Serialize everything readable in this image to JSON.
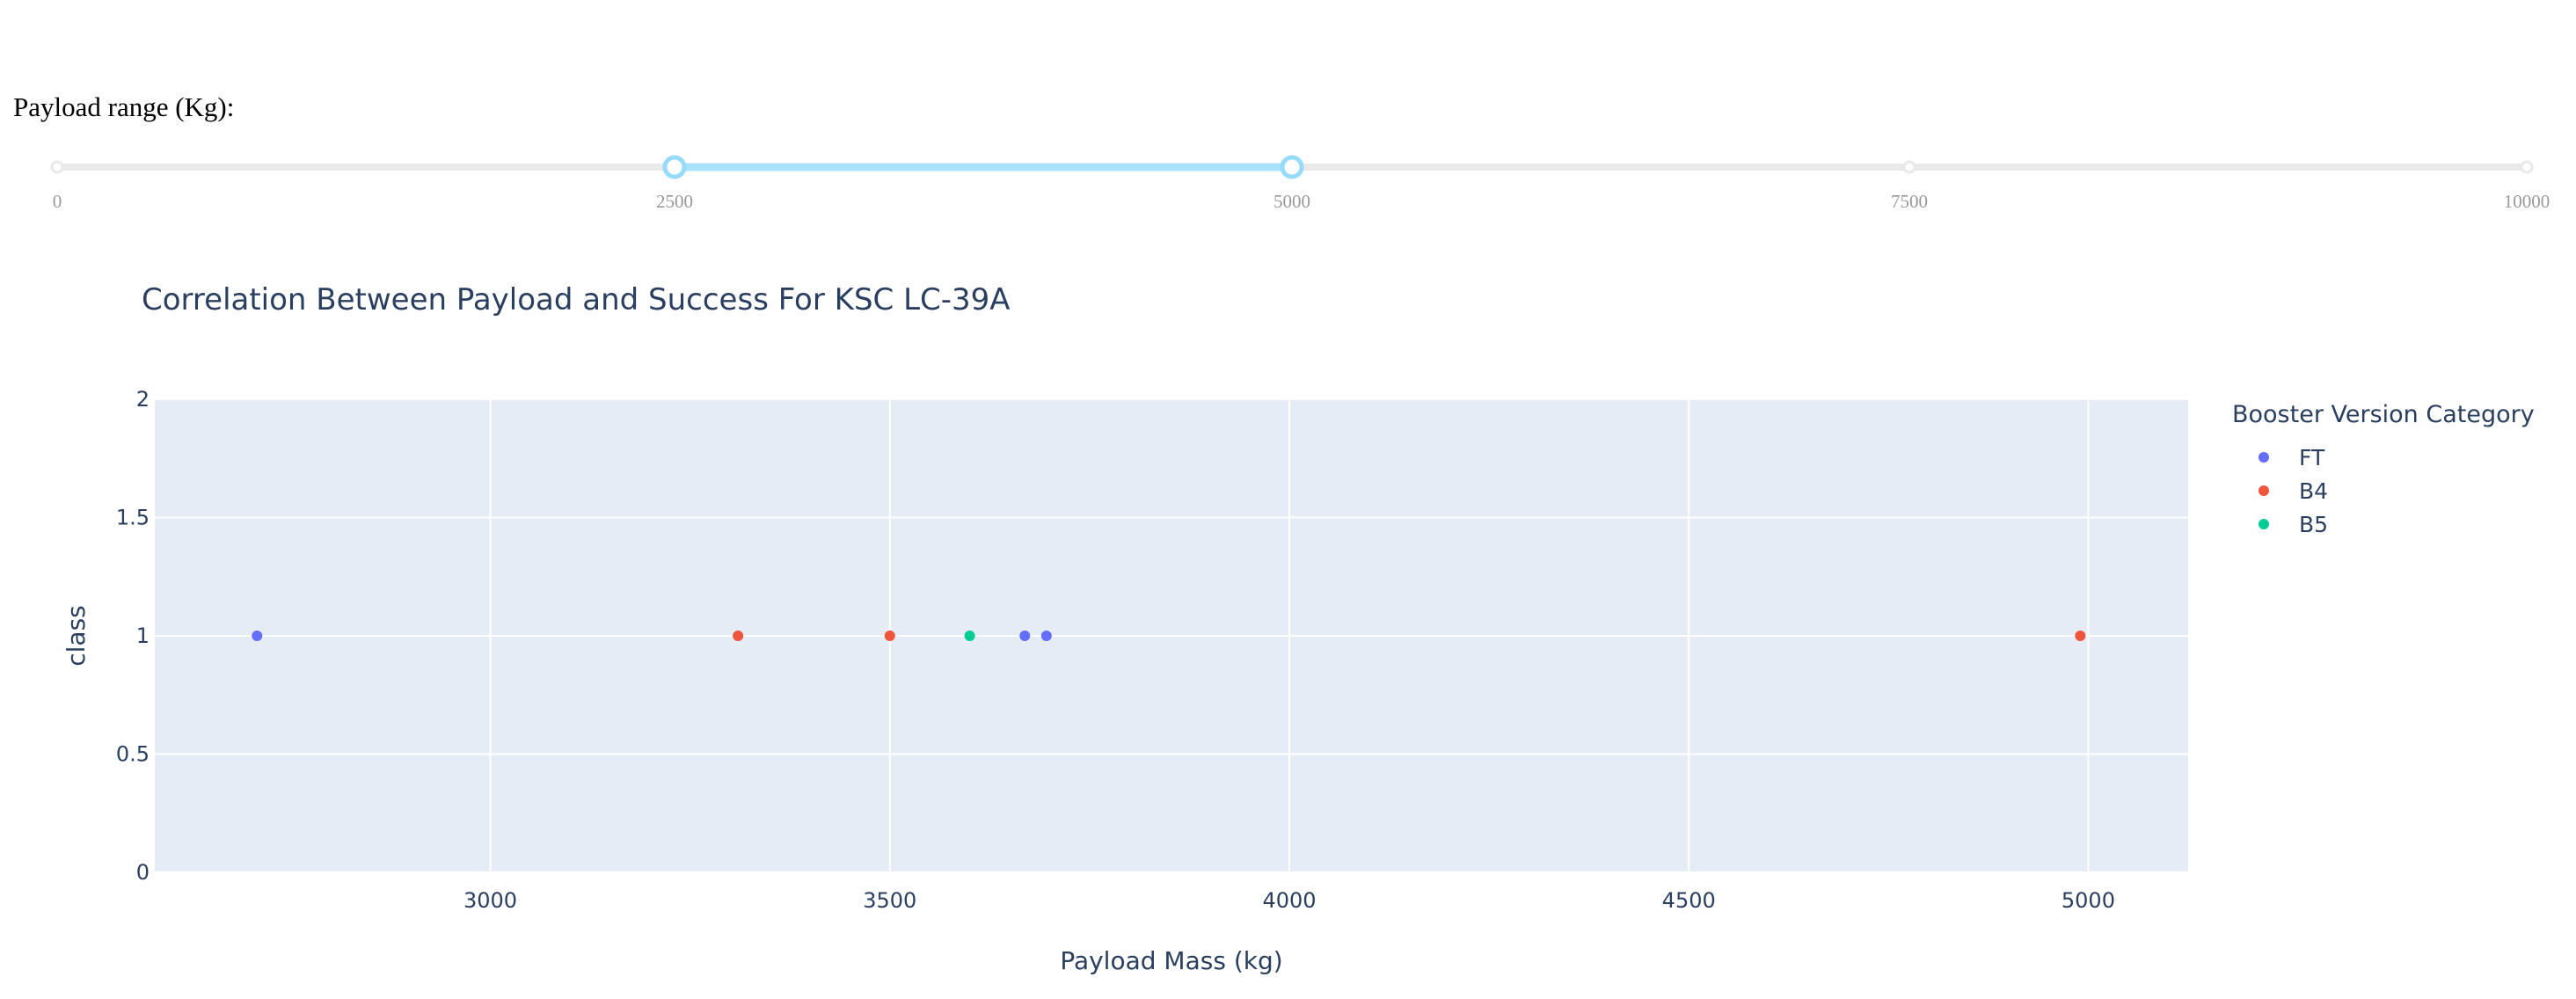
{
  "slider": {
    "label": "Payload range (Kg):",
    "min": 0,
    "max": 10000,
    "value": [
      2500,
      5000
    ],
    "marks": [
      "0",
      "2500",
      "5000",
      "7500",
      "10000"
    ],
    "track_color": "#e9e9e9",
    "range_color": "#abe2fb",
    "handle_color": "#96dbfa"
  },
  "chart_data": {
    "type": "scatter",
    "title": "Correlation Between Payload and Success For KSC LC-39A",
    "xlabel": "Payload Mass (kg)",
    "ylabel": "class",
    "xlim": [
      2580,
      5125
    ],
    "ylim": [
      0,
      2
    ],
    "x_ticks": [
      "3000",
      "3500",
      "4000",
      "4500",
      "5000"
    ],
    "x_tick_values": [
      3000,
      3500,
      4000,
      4500,
      5000
    ],
    "y_ticks": [
      "0",
      "0.5",
      "1",
      "1.5",
      "2"
    ],
    "y_tick_values": [
      0,
      0.5,
      1,
      1.5,
      2
    ],
    "grid": true,
    "legend": {
      "title": "Booster Version Category",
      "placement": "right"
    },
    "series": [
      {
        "name": "FT",
        "color": "#636efa",
        "points": [
          {
            "x": 2708,
            "y": 1
          },
          {
            "x": 3669,
            "y": 1
          },
          {
            "x": 3696,
            "y": 1
          }
        ]
      },
      {
        "name": "B4",
        "color": "#ef553b",
        "points": [
          {
            "x": 3310,
            "y": 1
          },
          {
            "x": 3500,
            "y": 1
          },
          {
            "x": 4990,
            "y": 1
          }
        ]
      },
      {
        "name": "B5",
        "color": "#00cc96",
        "points": [
          {
            "x": 3600,
            "y": 1
          }
        ]
      }
    ],
    "plot_bg": "#e5ecf6",
    "text_color": "#2a3f5f"
  }
}
